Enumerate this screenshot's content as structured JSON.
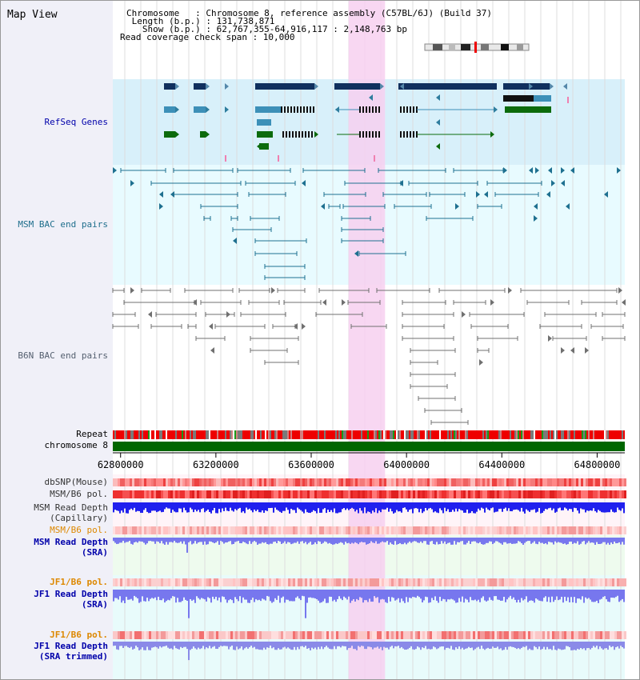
{
  "title": "Map View",
  "info": {
    "chromosome": "Chromosome   : Chromosome 8, reference assembly (C57BL/6J) (Build 37)",
    "length": " Length (b.p.) : 131,738,871",
    "show": "   Show (b.p.) : 62,767,355-64,916,117 : 2,148,763 bp",
    "span": "Read coverage check span : 10,000"
  },
  "tracks": {
    "refseq": "RefSeq Genes",
    "msm_bac": "MSM BAC end pairs",
    "b6n_bac": "B6N BAC end pairs",
    "repeat": "Repeat",
    "chrom": "chromosome 8",
    "dbsnp": "dbSNP(Mouse)",
    "msm_b6_pol1": "MSM/B6 pol.",
    "msm_depth_cap_1": "MSM Read Depth",
    "msm_depth_cap_2": "(Capillary)",
    "msm_b6_pol2": "MSM/B6 pol.",
    "msm_depth_sra_1": "MSM Read Depth",
    "msm_depth_sra_2": "(SRA)",
    "jf1_pol1": "JF1/B6 pol.",
    "jf1_depth_1": "JF1 Read Depth",
    "jf1_depth_2": "(SRA)",
    "jf1_pol2": "JF1/B6 pol.",
    "jf1_trim_1": "JF1 Read Depth",
    "jf1_trim_2": "(SRA trimmed)"
  },
  "axis": {
    "ticks": [
      62800000,
      63200000,
      63600000,
      64000000,
      64400000,
      64800000
    ],
    "tick_labels": [
      "62800000",
      "63200000",
      "63600000",
      "64000000",
      "64400000",
      "64800000"
    ],
    "range": [
      62767355,
      64916117
    ]
  },
  "highlight": [
    63757000,
    63910000
  ],
  "colors": {
    "refseq_bg": "#d8f0fa",
    "bac_bg": "#e8fbff",
    "highlight": "#f7d0f0",
    "gene_dark": "#10305e",
    "gene_mid": "#3d90b8",
    "gene_green": "#0c6b0c",
    "msm_bac": "#1e7090",
    "b6n_bac": "#707070",
    "repeat_red": "#ee0000",
    "chrom_green": "#006600",
    "depth_blue": "#2020ee",
    "depth_light": "#7777ee",
    "label_blue": "#0000aa",
    "label_orange": "#dd8800"
  }
}
